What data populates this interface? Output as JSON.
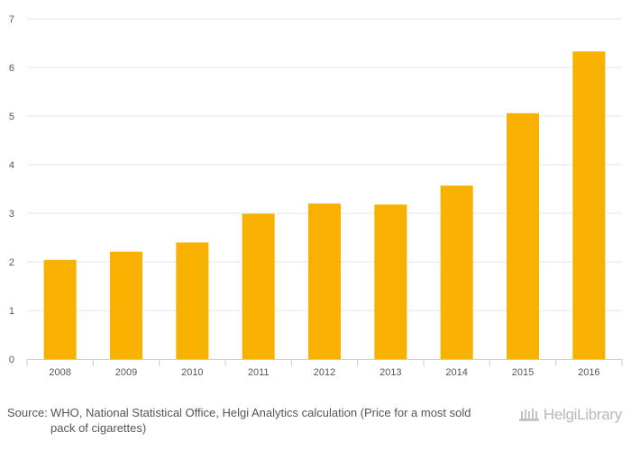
{
  "chart_data": {
    "type": "bar",
    "categories": [
      "2008",
      "2009",
      "2010",
      "2011",
      "2012",
      "2013",
      "2014",
      "2015",
      "2016"
    ],
    "values": [
      2.04,
      2.21,
      2.4,
      2.99,
      3.2,
      3.18,
      3.57,
      5.06,
      6.33
    ],
    "ylim": [
      0,
      7
    ],
    "yticks": [
      "0",
      "1",
      "2",
      "3",
      "4",
      "5",
      "6",
      "7"
    ],
    "grid": true,
    "bar_color": "#f9b100",
    "legend": "none"
  },
  "footer": {
    "source_label": "Source:",
    "source_text": "WHO, National Statistical Office, Helgi Analytics calculation (Price for a most sold pack of cigarettes)",
    "brand": "HelgiLibrary"
  }
}
